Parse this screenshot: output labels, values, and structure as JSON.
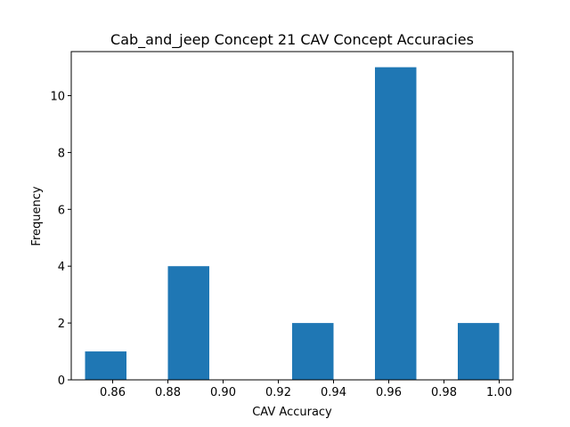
{
  "chart_data": {
    "type": "bar",
    "title": "Cab_and_jeep Concept 21 CAV Concept Accuracies",
    "xlabel": "CAV Accuracy",
    "ylabel": "Frequency",
    "xlim": [
      0.845,
      1.005
    ],
    "ylim": [
      0,
      11.55
    ],
    "bins": [
      {
        "x0": 0.85,
        "x1": 0.865,
        "count": 1
      },
      {
        "x0": 0.865,
        "x1": 0.88,
        "count": 0
      },
      {
        "x0": 0.88,
        "x1": 0.895,
        "count": 4
      },
      {
        "x0": 0.895,
        "x1": 0.91,
        "count": 0
      },
      {
        "x0": 0.91,
        "x1": 0.925,
        "count": 0
      },
      {
        "x0": 0.925,
        "x1": 0.94,
        "count": 2
      },
      {
        "x0": 0.94,
        "x1": 0.955,
        "count": 0
      },
      {
        "x0": 0.955,
        "x1": 0.97,
        "count": 11
      },
      {
        "x0": 0.97,
        "x1": 0.985,
        "count": 0
      },
      {
        "x0": 0.985,
        "x1": 1.0,
        "count": 2
      }
    ],
    "xticks": [
      "0.86",
      "0.88",
      "0.90",
      "0.92",
      "0.94",
      "0.96",
      "0.98",
      "1.00"
    ],
    "yticks": [
      "0",
      "2",
      "4",
      "6",
      "8",
      "10"
    ],
    "bar_color": "#1f77b4",
    "grid": false,
    "legend": "none"
  }
}
